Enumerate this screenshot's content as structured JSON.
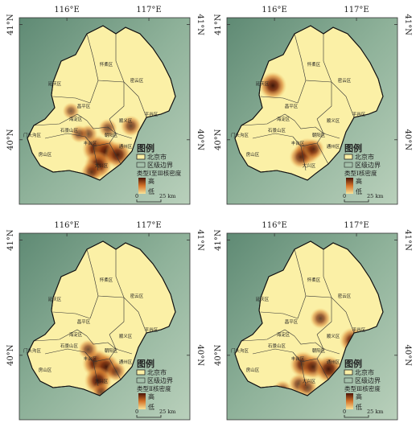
{
  "coords": {
    "lon1": "116°E",
    "lon2": "117°E",
    "lat1": "41°N",
    "lat2": "40°N"
  },
  "legend": {
    "title": "图例",
    "city": "北京市",
    "district": "区级边界",
    "high": "高",
    "low": "低"
  },
  "scale": {
    "zero": "0",
    "dist": "25 km"
  },
  "districts": {
    "yanqing": "延庆区",
    "huairou": "怀柔区",
    "miyun": "密云区",
    "changping": "昌平区",
    "shunyi": "顺义区",
    "pinggu": "平谷区",
    "mentougou": "门头沟区",
    "fangshan": "房山区",
    "daxing": "大兴区",
    "tongzhou": "通州区",
    "haidian": "海淀区",
    "chaoyang": "朝阳区",
    "fengtai": "丰台区",
    "shijingshan": "石景山区"
  },
  "panels": [
    {
      "density_label": "类型Ⅰ至Ⅲ核密度",
      "hotspots": [
        {
          "lon": 116.78,
          "lat": 40.12,
          "level": 0.6
        },
        {
          "lon": 116.36,
          "lat": 39.92,
          "level": 1.0
        },
        {
          "lon": 116.48,
          "lat": 39.9,
          "level": 0.95
        },
        {
          "lon": 116.38,
          "lat": 39.78,
          "level": 0.95
        },
        {
          "lon": 116.62,
          "lat": 39.87,
          "level": 0.9
        },
        {
          "lon": 116.26,
          "lat": 40.05,
          "level": 0.5
        },
        {
          "lon": 116.15,
          "lat": 40.05,
          "level": 0.45
        },
        {
          "lon": 116.05,
          "lat": 40.25,
          "level": 0.4
        },
        {
          "lon": 116.5,
          "lat": 40.1,
          "level": 0.5
        },
        {
          "lon": 116.3,
          "lat": 39.72,
          "level": 0.6
        }
      ]
    },
    {
      "density_label": "类型Ⅰ核密度",
      "hotspots": [
        {
          "lon": 115.98,
          "lat": 40.47,
          "level": 0.95
        },
        {
          "lon": 116.4,
          "lat": 39.9,
          "level": 0.9
        },
        {
          "lon": 116.32,
          "lat": 39.85,
          "level": 0.7
        },
        {
          "lon": 116.48,
          "lat": 39.92,
          "level": 0.6
        }
      ]
    },
    {
      "density_label": "类型Ⅱ核密度",
      "hotspots": [
        {
          "lon": 116.36,
          "lat": 39.93,
          "level": 1.0
        },
        {
          "lon": 116.48,
          "lat": 39.9,
          "level": 0.9
        },
        {
          "lon": 116.38,
          "lat": 39.78,
          "level": 0.95
        },
        {
          "lon": 116.26,
          "lat": 40.05,
          "level": 0.55
        },
        {
          "lon": 116.6,
          "lat": 39.86,
          "level": 0.55
        },
        {
          "lon": 116.42,
          "lat": 39.68,
          "level": 0.5
        }
      ]
    },
    {
      "density_label": "类型Ⅲ核密度",
      "hotspots": [
        {
          "lon": 116.35,
          "lat": 39.92,
          "level": 0.9
        },
        {
          "lon": 116.47,
          "lat": 39.9,
          "level": 0.8
        },
        {
          "lon": 116.66,
          "lat": 39.88,
          "level": 0.95
        },
        {
          "lon": 116.95,
          "lat": 40.13,
          "level": 0.85
        },
        {
          "lon": 116.56,
          "lat": 40.32,
          "level": 0.6
        },
        {
          "lon": 116.3,
          "lat": 39.75,
          "level": 0.6
        },
        {
          "lon": 116.1,
          "lat": 39.7,
          "level": 0.5
        },
        {
          "lon": 116.4,
          "lat": 39.72,
          "level": 0.55
        }
      ]
    }
  ]
}
